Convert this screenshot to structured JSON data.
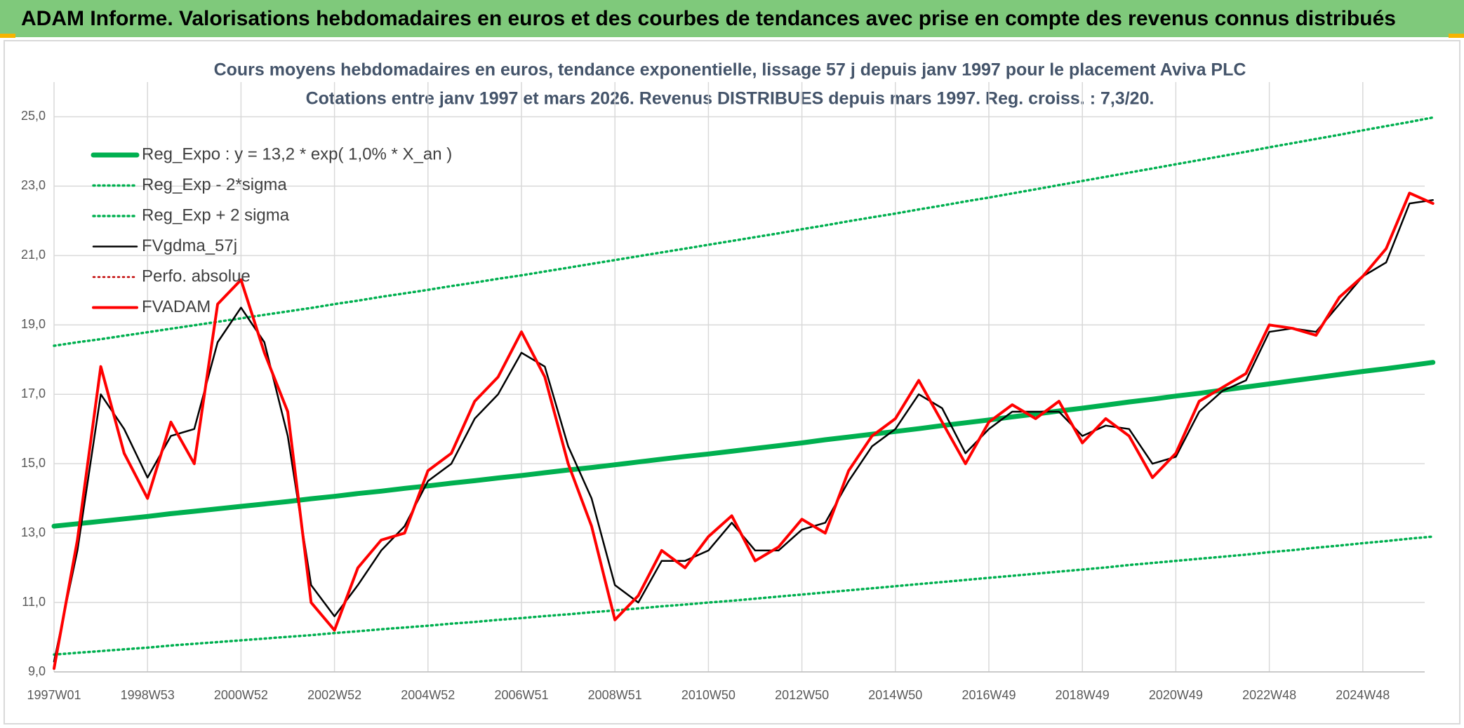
{
  "header": {
    "title": "ADAM Informe. Valorisations hebdomadaires en euros et des courbes de tendances avec prise en compte des revenus connus distribués"
  },
  "chart_data": {
    "type": "line",
    "title": "Cours moyens hebdomadaires en euros, tendance exponentielle, lissage 57 j depuis janv 1997 pour le placement Aviva PLC",
    "subtitle": "Cotations entre janv 1997 et mars 2026. Revenus DISTRIBUES depuis mars 1997. Reg. croiss. : 7,3/20.",
    "categories": [
      "1997W01",
      null,
      null,
      null,
      "1998W53",
      null,
      null,
      null,
      "2000W52",
      null,
      null,
      null,
      "2002W52",
      null,
      null,
      null,
      "2004W52",
      null,
      null,
      null,
      "2006W51",
      null,
      null,
      null,
      "2008W51",
      null,
      null,
      null,
      "2010W50",
      null,
      null,
      null,
      "2012W50",
      null,
      null,
      null,
      "2014W50",
      null,
      null,
      null,
      "2016W49",
      null,
      null,
      null,
      "2018W49",
      null,
      null,
      null,
      "2020W49",
      null,
      null,
      null,
      "2022W48",
      null,
      null,
      null,
      "2024W48",
      null,
      null,
      null
    ],
    "ylim": [
      9,
      26
    ],
    "yticks": [
      {
        "value": 9,
        "label": "9,0"
      },
      {
        "value": 11,
        "label": "11,0"
      },
      {
        "value": 13,
        "label": "13,0"
      },
      {
        "value": 15,
        "label": "15,0"
      },
      {
        "value": 17,
        "label": "17,0"
      },
      {
        "value": 19,
        "label": "19,0"
      },
      {
        "value": 21,
        "label": "21,0"
      },
      {
        "value": 23,
        "label": "23,0"
      },
      {
        "value": 25,
        "label": "25,0"
      }
    ],
    "grid": true,
    "legend": "upper left",
    "series": [
      {
        "name": "Reg_Expo : y = 13,2 * exp( 1,0% *  X_an )",
        "color": "#00b050",
        "style": "solid",
        "values": [
          13.2,
          13.27,
          13.34,
          13.41,
          13.48,
          13.56,
          13.63,
          13.7,
          13.77,
          13.84,
          13.91,
          13.99,
          14.06,
          14.14,
          14.21,
          14.29,
          14.36,
          14.44,
          14.51,
          14.59,
          14.66,
          14.74,
          14.82,
          14.89,
          14.97,
          15.05,
          15.13,
          15.21,
          15.28,
          15.36,
          15.44,
          15.52,
          15.6,
          15.69,
          15.77,
          15.85,
          15.93,
          16.01,
          16.1,
          16.18,
          16.26,
          16.35,
          16.43,
          16.52,
          16.6,
          16.69,
          16.78,
          16.86,
          16.95,
          17.03,
          17.12,
          17.21,
          17.3,
          17.39,
          17.48,
          17.57,
          17.66,
          17.74,
          17.83,
          17.92
        ]
      },
      {
        "name": "Reg_Exp - 2*sigma",
        "color": "#00b050",
        "style": "dotted",
        "values": [
          9.5,
          9.55,
          9.6,
          9.65,
          9.7,
          9.76,
          9.81,
          9.86,
          9.91,
          9.96,
          10.01,
          10.06,
          10.12,
          10.17,
          10.23,
          10.28,
          10.33,
          10.39,
          10.44,
          10.5,
          10.55,
          10.61,
          10.66,
          10.72,
          10.77,
          10.83,
          10.89,
          10.94,
          11.0,
          11.05,
          11.11,
          11.17,
          11.23,
          11.29,
          11.35,
          11.41,
          11.47,
          11.53,
          11.59,
          11.65,
          11.71,
          11.77,
          11.83,
          11.89,
          11.95,
          12.01,
          12.08,
          12.14,
          12.2,
          12.26,
          12.32,
          12.38,
          12.45,
          12.51,
          12.58,
          12.64,
          12.71,
          12.77,
          12.84,
          12.9
        ]
      },
      {
        "name": "Reg_Exp + 2 sigma",
        "color": "#00b050",
        "style": "dotted",
        "values": [
          18.4,
          18.5,
          18.59,
          18.69,
          18.79,
          18.89,
          18.99,
          19.09,
          19.19,
          19.29,
          19.39,
          19.49,
          19.6,
          19.7,
          19.81,
          19.91,
          20.01,
          20.12,
          20.22,
          20.33,
          20.43,
          20.54,
          20.65,
          20.76,
          20.87,
          20.98,
          21.09,
          21.2,
          21.31,
          21.42,
          21.53,
          21.64,
          21.76,
          21.87,
          21.99,
          22.1,
          22.21,
          22.33,
          22.44,
          22.56,
          22.67,
          22.79,
          22.91,
          23.03,
          23.15,
          23.27,
          23.39,
          23.51,
          23.63,
          23.75,
          23.87,
          23.99,
          24.12,
          24.24,
          24.36,
          24.48,
          24.61,
          24.73,
          24.85,
          24.98
        ]
      },
      {
        "name": "FVgdma_57j",
        "color": "#000000",
        "style": "solid",
        "values": [
          9.3,
          12.5,
          17.0,
          16.0,
          14.6,
          15.8,
          16.0,
          18.5,
          19.5,
          18.5,
          15.8,
          11.5,
          10.6,
          11.5,
          12.5,
          13.2,
          14.5,
          15.0,
          16.3,
          17.0,
          18.2,
          17.8,
          15.5,
          14.0,
          11.5,
          11.0,
          12.2,
          12.2,
          12.5,
          13.3,
          12.5,
          12.5,
          13.1,
          13.3,
          14.5,
          15.5,
          16.0,
          17.0,
          16.6,
          15.3,
          16.0,
          16.5,
          16.5,
          16.5,
          15.8,
          16.1,
          16.0,
          15.0,
          15.2,
          16.5,
          17.1,
          17.4,
          18.8,
          18.9,
          18.8,
          19.6,
          20.4,
          20.8,
          22.5,
          22.6
        ]
      },
      {
        "name": "Perfo. absolue",
        "color": "#c00000",
        "style": "dotted",
        "values": [
          null,
          null,
          null,
          null,
          null,
          null,
          null,
          null,
          null,
          null,
          null,
          null,
          null,
          null,
          null,
          null,
          null,
          null,
          null,
          null,
          null,
          null,
          null,
          null,
          null,
          null,
          null,
          null,
          null,
          null,
          null,
          null,
          null,
          null,
          null,
          null,
          null,
          null,
          null,
          null,
          null,
          null,
          null,
          null,
          null,
          null,
          null,
          null,
          null,
          null,
          null,
          null,
          null,
          null,
          null,
          null,
          null,
          null,
          null,
          null
        ]
      },
      {
        "name": "FVADAM",
        "color": "#ff0000",
        "style": "solid",
        "values": [
          9.1,
          12.8,
          17.8,
          15.3,
          14.0,
          16.2,
          15.0,
          19.6,
          20.3,
          18.2,
          16.5,
          11.0,
          10.2,
          12.0,
          12.8,
          13.0,
          14.8,
          15.3,
          16.8,
          17.5,
          18.8,
          17.5,
          15.0,
          13.2,
          10.5,
          11.2,
          12.5,
          12.0,
          12.9,
          13.5,
          12.2,
          12.6,
          13.4,
          13.0,
          14.8,
          15.8,
          16.3,
          17.4,
          16.2,
          15.0,
          16.2,
          16.7,
          16.3,
          16.8,
          15.6,
          16.3,
          15.8,
          14.6,
          15.3,
          16.8,
          17.2,
          17.6,
          19.0,
          18.9,
          18.7,
          19.8,
          20.4,
          21.2,
          22.8,
          22.5
        ]
      }
    ]
  }
}
